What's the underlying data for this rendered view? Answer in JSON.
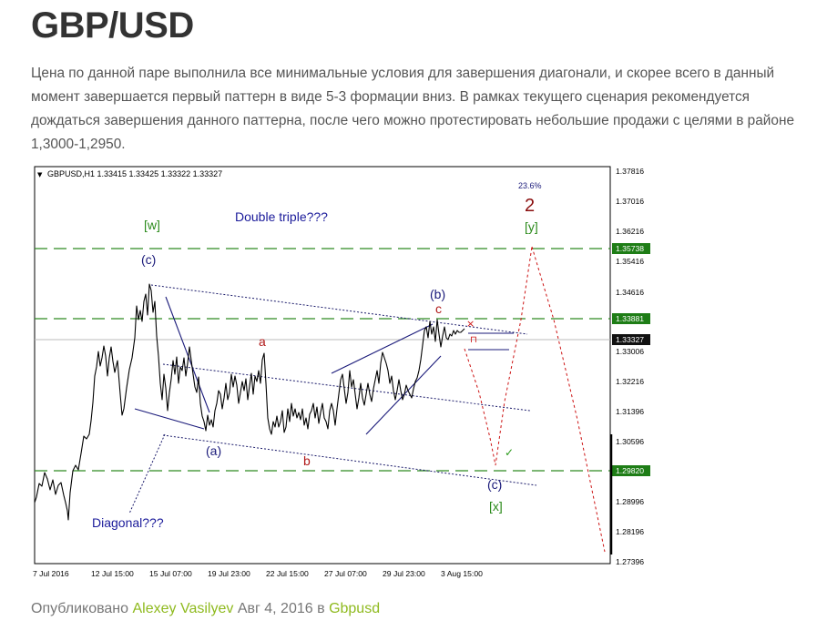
{
  "post": {
    "title": "GBP/USD",
    "body": "Цена по данной паре выполнила все минимальные условия для завершения диагонали, и скорее всего в данный момент завершается первый паттерн в виде 5-3 формации вниз. В рамках текущего сценария рекомендуется дождаться завершения данного паттерна, после чего можно протестировать  небольшие продажи с целями в районе 1,3000-1,2950."
  },
  "chart": {
    "header": "GBPUSD,H1  1.33415 1.33425 1.33322 1.33327",
    "header_arrow": "▼",
    "y_ticks": [
      "1.37816",
      "1.37016",
      "1.36216",
      "1.35416",
      "1.34616",
      "1.33806",
      "1.33006",
      "1.32216",
      "1.31396",
      "1.30596",
      "1.29796",
      "1.28996",
      "1.28196",
      "1.27396"
    ],
    "x_ticks": [
      "7 Jul 2016",
      "12 Jul 15:00",
      "15 Jul 07:00",
      "19 Jul 23:00",
      "22 Jul 15:00",
      "27 Jul 07:00",
      "29 Jul 23:00",
      "3 Aug 15:00"
    ],
    "price_labels": {
      "upper": "1.35738",
      "middle": "1.33881",
      "current": "1.33327",
      "lower": "1.29820"
    },
    "annotations": {
      "double_triple": "Double triple???",
      "diagonal": "Diagonal???",
      "w": "[w]",
      "c_top": "(c)",
      "a_small": "a",
      "a_paren": "(a)",
      "b_small": "b",
      "b_paren": "(b)",
      "c_small": "c",
      "c_paren_low": "(c)",
      "x_label": "[x]",
      "y_label": "[y]",
      "wave_2": "2",
      "fib_pct": "23.6%"
    },
    "colors": {
      "up_label": "#2a8a1a",
      "wave_navy": "#1a1a7a",
      "wave_red": "#b01818",
      "projection": "#cc1111",
      "level_green_bg": "#1e7d16",
      "current_bg": "#111111"
    }
  },
  "footer": {
    "prefix": "Опубликовано",
    "author": "Alexey Vasilyev",
    "date": "Авг 4, 2016",
    "in_word": "в",
    "category": "Gbpusd"
  }
}
